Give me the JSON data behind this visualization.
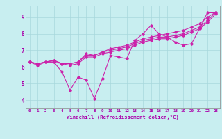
{
  "bg_color": "#c8eef0",
  "line_color": "#cc22aa",
  "grid_color": "#a8d8dc",
  "xlabel": "Windchill (Refroidissement éolien,°C)",
  "xlabel_color": "#aa00aa",
  "ylabel_color": "#aa00aa",
  "tick_color": "#aa00aa",
  "xlim": [
    -0.5,
    23.5
  ],
  "ylim": [
    3.5,
    9.7
  ],
  "yticks": [
    4,
    5,
    6,
    7,
    8,
    9
  ],
  "xticks": [
    0,
    1,
    2,
    3,
    4,
    5,
    6,
    7,
    8,
    9,
    10,
    11,
    12,
    13,
    14,
    15,
    16,
    17,
    18,
    19,
    20,
    21,
    22,
    23
  ],
  "series": {
    "line1": [
      6.3,
      6.1,
      6.3,
      6.3,
      5.7,
      4.6,
      5.4,
      5.2,
      4.1,
      5.3,
      6.7,
      6.6,
      6.5,
      7.6,
      8.0,
      8.5,
      8.0,
      7.8,
      7.5,
      7.3,
      7.4,
      8.3,
      9.3,
      9.3
    ],
    "line2": [
      6.3,
      6.2,
      6.3,
      6.4,
      6.2,
      6.2,
      6.3,
      6.8,
      6.7,
      6.9,
      7.1,
      7.2,
      7.3,
      7.5,
      7.7,
      7.8,
      7.9,
      8.0,
      8.1,
      8.2,
      8.4,
      8.6,
      9.0,
      9.3
    ],
    "line3": [
      6.3,
      6.2,
      6.3,
      6.4,
      6.2,
      6.2,
      6.3,
      6.7,
      6.7,
      6.9,
      7.0,
      7.1,
      7.2,
      7.4,
      7.6,
      7.7,
      7.8,
      7.8,
      7.9,
      8.0,
      8.2,
      8.4,
      8.8,
      9.3
    ],
    "line4": [
      6.3,
      6.2,
      6.3,
      6.3,
      6.2,
      6.1,
      6.2,
      6.6,
      6.6,
      6.8,
      6.9,
      7.0,
      7.1,
      7.3,
      7.5,
      7.6,
      7.7,
      7.7,
      7.8,
      7.9,
      8.1,
      8.3,
      8.7,
      9.2
    ]
  },
  "figsize": [
    3.2,
    2.0
  ],
  "dpi": 100
}
